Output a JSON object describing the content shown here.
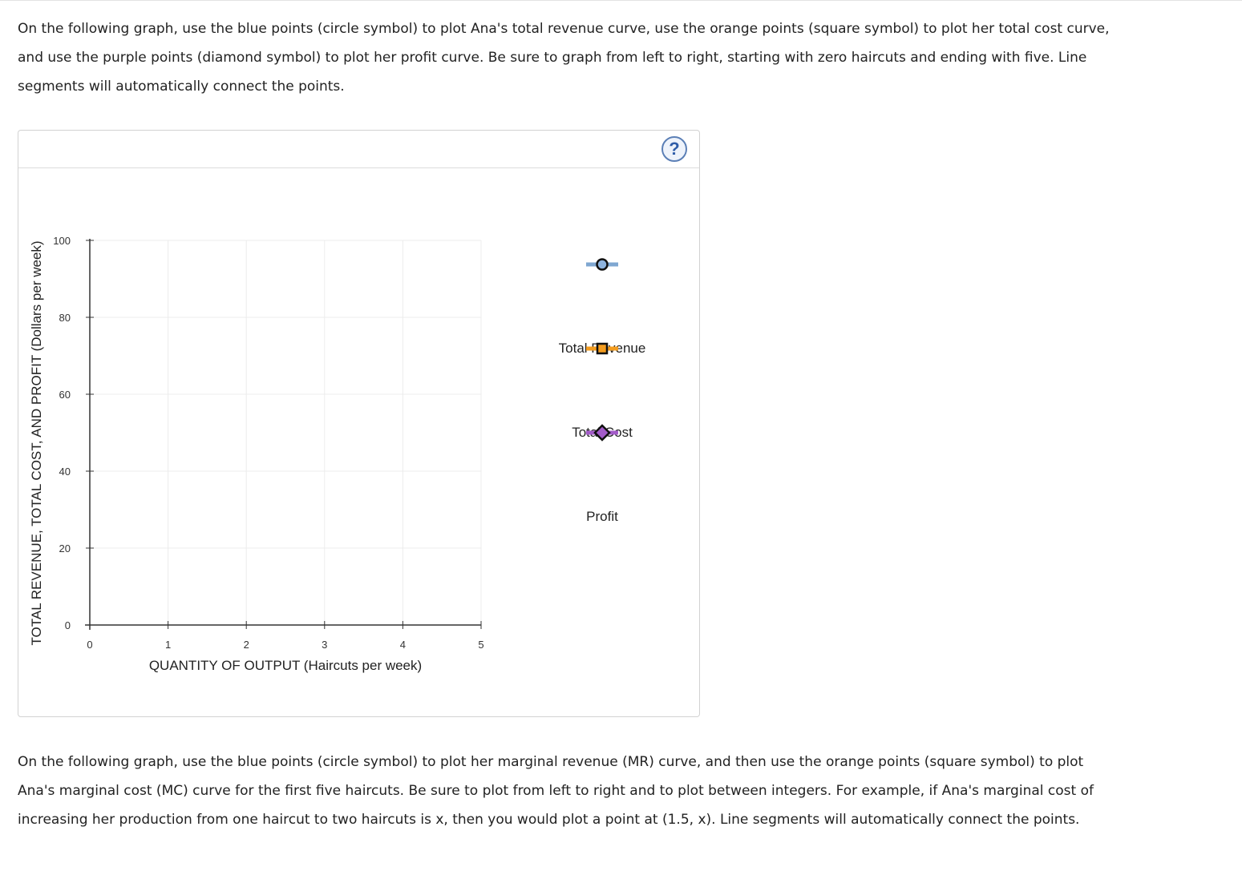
{
  "instructions": {
    "top": "On the following graph, use the blue points (circle symbol) to plot Ana's total revenue curve, use the orange points (square symbol) to plot her total cost curve, and use the purple points (diamond symbol) to plot her profit curve. Be sure to graph from left to right, starting with zero haircuts and ending with five. Line segments will automatically connect the points.",
    "bottom": "On the following graph, use the blue points (circle symbol) to plot her marginal revenue (MR) curve, and then use the orange points (square symbol) to plot Ana's marginal cost (MC) curve for the first five haircuts. Be sure to plot from left to right and to plot between integers. For example, if Ana's marginal cost of increasing her production from one haircut to two haircuts is x, then you would plot a point at (1.5, x). Line segments will automatically connect the points."
  },
  "help": {
    "label": "?",
    "icon": "help-icon"
  },
  "chart_data": {
    "type": "line",
    "xlabel": "QUANTITY OF OUTPUT (Haircuts per week)",
    "ylabel": "TOTAL REVENUE, TOTAL COST, AND PROFIT (Dollars per week)",
    "xlim": [
      0,
      5
    ],
    "ylim": [
      0,
      100
    ],
    "x_ticks": [
      "0",
      "1",
      "2",
      "3",
      "4",
      "5"
    ],
    "y_ticks": [
      "0",
      "20",
      "40",
      "60",
      "80",
      "100"
    ],
    "grid": true,
    "legend_placement": "right",
    "series": [
      {
        "name": "Total Revenue",
        "marker": "circle",
        "line_color": "#7fa7d1",
        "marker_fill": "#8db3de",
        "values": []
      },
      {
        "name": "Total Cost",
        "marker": "square",
        "line_color": "#f39c1f",
        "marker_fill": "#f39c1f",
        "values": []
      },
      {
        "name": "Profit",
        "marker": "diamond",
        "line_color": "#a35bc9",
        "marker_fill": "#a35bc9",
        "values": []
      }
    ]
  }
}
